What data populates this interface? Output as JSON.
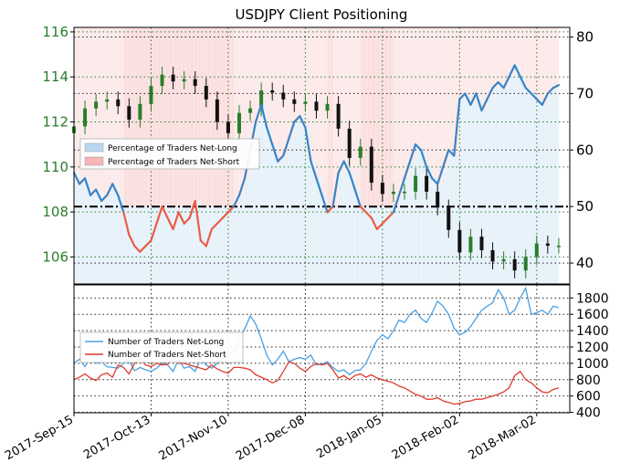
{
  "chart_data": [
    {
      "type": "line",
      "panel": "top",
      "title": "USDJPY Client Positioning",
      "left_axis": {
        "label": "",
        "ticks": [
          106,
          108,
          110,
          112,
          114,
          116
        ],
        "range": [
          104.8,
          116.2
        ],
        "color": "#2a7d2a"
      },
      "right_axis": {
        "label": "",
        "ticks": [
          40,
          50,
          60,
          70,
          80
        ],
        "range": [
          36.3,
          81.7
        ]
      },
      "reference_line": {
        "value": 50,
        "axis": "right",
        "style": "dash-dot",
        "color": "#000000"
      },
      "grid": true,
      "legend": {
        "placement": "center-left",
        "entries": [
          {
            "label": "Percentage of Traders Net-Long",
            "color": "#b9d7f2"
          },
          {
            "label": "Percentage of Traders Net-Short",
            "color": "#f7b5b5"
          }
        ]
      },
      "series": [
        {
          "key": "pct_long",
          "axis": "right",
          "x_days": [
            0,
            2,
            4,
            6,
            8,
            10,
            12,
            14,
            16,
            18,
            20,
            22,
            24,
            26,
            28,
            30,
            32,
            34,
            36,
            38,
            40,
            42,
            44,
            46,
            48,
            50,
            52,
            54,
            56,
            58,
            60,
            62,
            64,
            66,
            68,
            70,
            72,
            74,
            76,
            78,
            80,
            82,
            84,
            86,
            88,
            90,
            92,
            94,
            96,
            98,
            100,
            102,
            104,
            106,
            108,
            110,
            112,
            114,
            116,
            118,
            120,
            122,
            124,
            126,
            128,
            130,
            132,
            134,
            136,
            138,
            140,
            142,
            144,
            146,
            148,
            150,
            152,
            154,
            156,
            158,
            160,
            162,
            164,
            166,
            168,
            170,
            172,
            174,
            176
          ],
          "values": [
            56,
            54,
            55,
            52,
            53,
            51,
            52,
            54,
            52,
            49,
            45,
            43,
            42,
            43,
            44,
            47,
            50,
            48,
            46,
            49,
            47,
            48,
            51,
            44,
            43,
            46,
            47,
            48,
            49,
            50,
            52,
            55,
            60,
            65,
            68,
            64,
            61,
            58,
            59,
            62,
            65,
            66,
            64,
            58,
            55,
            52,
            49,
            50,
            56,
            58,
            56,
            53,
            50,
            49,
            48,
            46,
            47,
            48,
            49,
            52,
            55,
            58,
            61,
            60,
            57,
            55,
            54,
            57,
            60,
            59,
            69,
            70,
            68,
            70,
            67,
            69,
            71,
            72,
            71,
            73,
            75,
            73,
            71,
            70,
            69,
            68,
            70,
            71,
            71.5
          ],
          "colors_by_sign": {
            "above_50": "#3b83c3",
            "below_50": "#ea5c45"
          }
        },
        {
          "key": "usdjpy_price",
          "axis": "left",
          "style": "candlestick",
          "up_color": "#2a7d2a",
          "down_color": "#111111",
          "x_days": [
            0,
            4,
            8,
            12,
            16,
            20,
            24,
            28,
            32,
            36,
            40,
            44,
            48,
            52,
            56,
            60,
            64,
            68,
            72,
            76,
            80,
            84,
            88,
            92,
            96,
            100,
            104,
            108,
            112,
            116,
            120,
            124,
            128,
            132,
            136,
            140,
            144,
            148,
            152,
            156,
            160,
            164,
            168,
            172,
            176
          ],
          "close": [
            111.8,
            112.6,
            112.9,
            113.0,
            112.7,
            112.1,
            112.8,
            113.6,
            114.1,
            113.8,
            113.9,
            113.6,
            113.0,
            112.0,
            111.5,
            112.4,
            112.6,
            113.4,
            113.3,
            113.0,
            112.8,
            112.9,
            112.5,
            112.8,
            111.7,
            110.4,
            110.9,
            109.3,
            108.8,
            108.9,
            108.9,
            109.6,
            108.9,
            108.2,
            107.2,
            106.2,
            106.9,
            106.3,
            105.8,
            105.9,
            105.4,
            106.0,
            106.6,
            106.5,
            106.5
          ]
        }
      ]
    },
    {
      "type": "line",
      "panel": "bottom",
      "y_axis": {
        "label": "",
        "ticks": [
          400,
          600,
          800,
          1000,
          1200,
          1400,
          1600,
          1800
        ],
        "range": [
          395,
          1960
        ]
      },
      "grid": true,
      "legend": {
        "placement": "center-left",
        "entries": [
          {
            "label": "Number of Traders Net-Long",
            "color": "#4aa0e0"
          },
          {
            "label": "Number of Traders Net-Short",
            "color": "#e03a2e"
          }
        ]
      },
      "x_tick_labels": [
        "2017-Sep-15",
        "2017-Oct-13",
        "2017-Nov-10",
        "2017-Dec-08",
        "2018-Jan-05",
        "2018-Feb-02",
        "2018-Mar-02"
      ],
      "x_tick_days": [
        0,
        28,
        56,
        84,
        112,
        140,
        168
      ],
      "series": [
        {
          "key": "long_count",
          "x_days": [
            0,
            2,
            4,
            6,
            8,
            10,
            12,
            14,
            16,
            18,
            20,
            22,
            24,
            26,
            28,
            30,
            32,
            34,
            36,
            38,
            40,
            42,
            44,
            46,
            48,
            50,
            52,
            54,
            56,
            58,
            60,
            62,
            64,
            66,
            68,
            70,
            72,
            74,
            76,
            78,
            80,
            82,
            84,
            86,
            88,
            90,
            92,
            94,
            96,
            98,
            100,
            102,
            104,
            106,
            108,
            110,
            112,
            114,
            116,
            118,
            120,
            122,
            124,
            126,
            128,
            130,
            132,
            134,
            136,
            138,
            140,
            142,
            144,
            146,
            148,
            150,
            152,
            154,
            156,
            158,
            160,
            162,
            164,
            166,
            168,
            170,
            172,
            174,
            176
          ],
          "values": [
            1000,
            1050,
            960,
            1090,
            1000,
            1020,
            960,
            950,
            940,
            1000,
            1030,
            910,
            950,
            920,
            900,
            940,
            1000,
            980,
            900,
            1050,
            940,
            960,
            900,
            1060,
            980,
            940,
            1000,
            1050,
            1100,
            1150,
            1290,
            1420,
            1580,
            1480,
            1300,
            1100,
            980,
            1050,
            1150,
            1020,
            1050,
            1070,
            1050,
            1100,
            980,
            990,
            1020,
            950,
            900,
            920,
            860,
            910,
            920,
            1000,
            1150,
            1280,
            1350,
            1300,
            1400,
            1530,
            1500,
            1600,
            1650,
            1550,
            1500,
            1620,
            1760,
            1700,
            1600,
            1430,
            1350,
            1380,
            1450,
            1550,
            1650,
            1700,
            1740,
            1900,
            1800,
            1600,
            1650,
            1800,
            1920,
            1600,
            1620,
            1650,
            1600,
            1700,
            1680
          ],
          "color": "#4aa0e0"
        },
        {
          "key": "short_count",
          "x_days": [
            0,
            2,
            4,
            6,
            8,
            10,
            12,
            14,
            16,
            18,
            20,
            22,
            24,
            26,
            28,
            30,
            32,
            34,
            36,
            38,
            40,
            42,
            44,
            46,
            48,
            50,
            52,
            54,
            56,
            58,
            60,
            62,
            64,
            66,
            68,
            70,
            72,
            74,
            76,
            78,
            80,
            82,
            84,
            86,
            88,
            90,
            92,
            94,
            96,
            98,
            100,
            102,
            104,
            106,
            108,
            110,
            112,
            114,
            116,
            118,
            120,
            122,
            124,
            126,
            128,
            130,
            132,
            134,
            136,
            138,
            140,
            142,
            144,
            146,
            148,
            150,
            152,
            154,
            156,
            158,
            160,
            162,
            164,
            166,
            168,
            170,
            172,
            174,
            176
          ],
          "values": [
            800,
            830,
            870,
            820,
            790,
            860,
            880,
            830,
            980,
            950,
            870,
            1000,
            1050,
            980,
            960,
            1000,
            980,
            990,
            1050,
            1000,
            1000,
            980,
            960,
            940,
            920,
            980,
            930,
            900,
            880,
            950,
            950,
            940,
            920,
            860,
            830,
            800,
            760,
            790,
            900,
            1020,
            1000,
            940,
            900,
            960,
            1000,
            980,
            1000,
            920,
            820,
            850,
            800,
            850,
            870,
            830,
            860,
            820,
            800,
            780,
            760,
            720,
            700,
            660,
            620,
            600,
            560,
            560,
            580,
            540,
            520,
            500,
            510,
            530,
            540,
            560,
            560,
            580,
            600,
            620,
            650,
            700,
            850,
            900,
            800,
            760,
            700,
            650,
            640,
            680,
            700
          ],
          "color": "#e03a2e"
        }
      ]
    }
  ]
}
